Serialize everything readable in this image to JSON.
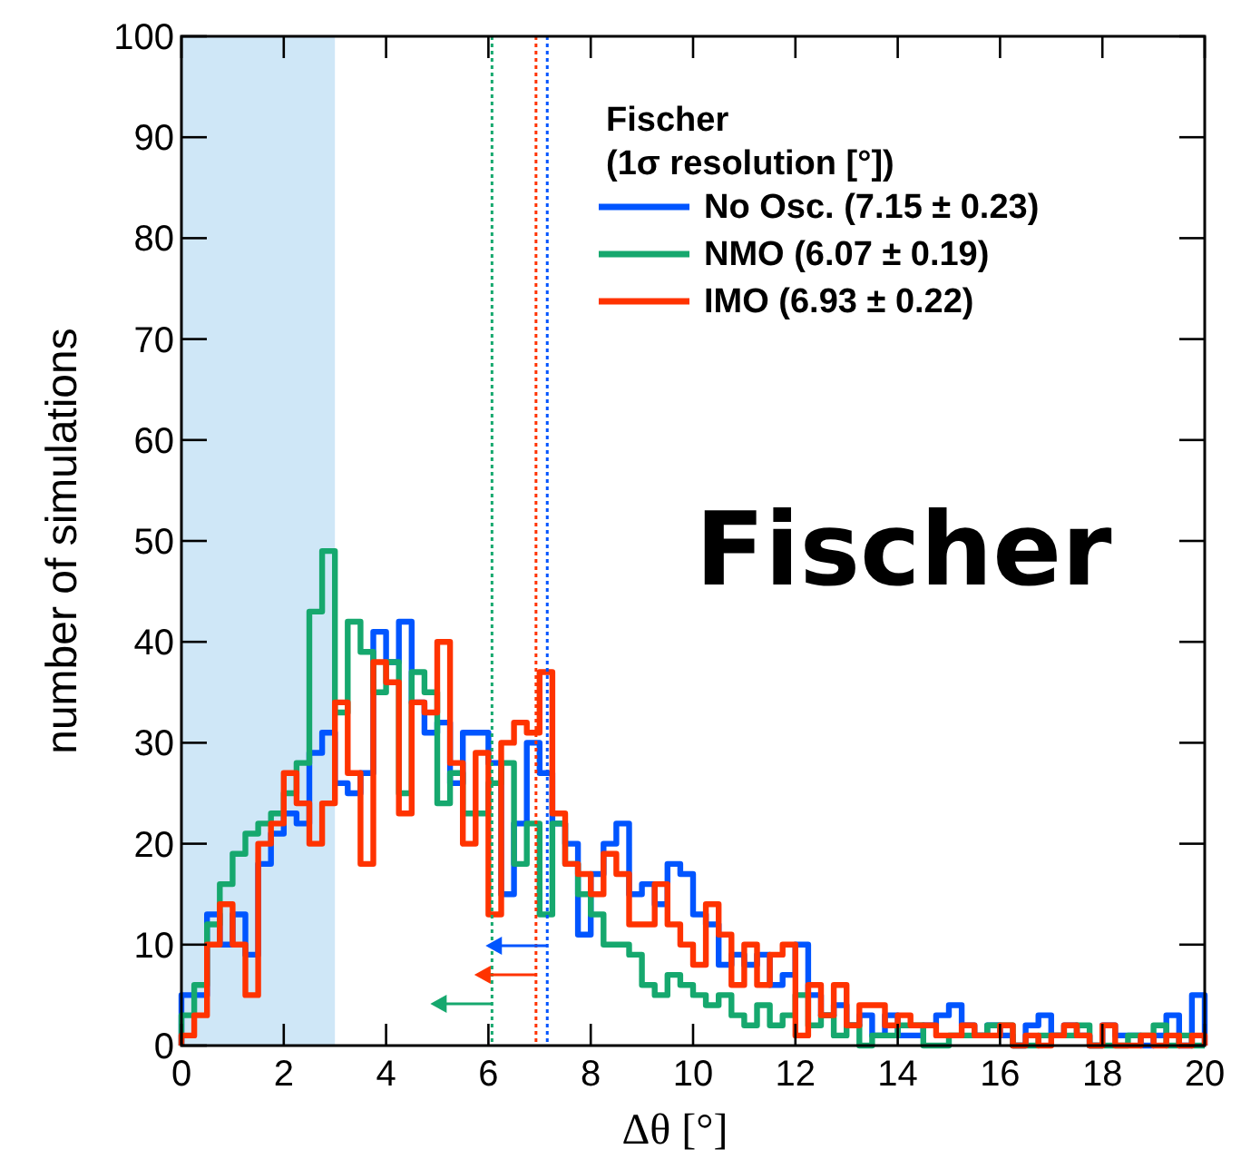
{
  "chart_data": {
    "type": "histogram",
    "xlabel": "Δθ [°]",
    "ylabel": "number of simulations",
    "legend_title": "Fischer\n(1σ resolution [°])",
    "legend": "top right",
    "annotations": [
      "Fischer"
    ],
    "bins": [
      0,
      0.25,
      0.5,
      0.75,
      1,
      1.25,
      1.5,
      1.75,
      2,
      2.25,
      2.5,
      2.75,
      3,
      3.25,
      3.5,
      3.75,
      4,
      4.25,
      4.5,
      4.75,
      5,
      5.25,
      5.5,
      5.75,
      6,
      6.25,
      6.5,
      6.75,
      7,
      7.25,
      7.5,
      7.75,
      8,
      8.25,
      8.5,
      8.75,
      9,
      9.25,
      9.5,
      9.75,
      10,
      10.25,
      10.5,
      10.75,
      11,
      11.25,
      11.5,
      11.75,
      12,
      12.25,
      12.5,
      12.75,
      13,
      13.25,
      13.5,
      13.75,
      14,
      14.25,
      14.5,
      14.75,
      15,
      15.25,
      15.5,
      15.75,
      16,
      16.25,
      16.5,
      16.75,
      17,
      17.25,
      17.5,
      17.75,
      18,
      18.25,
      18.5,
      18.75,
      19,
      19.25,
      19.5,
      19.75,
      20
    ],
    "series": [
      {
        "name": "No Osc. (7.15 ± 0.23)",
        "color": "#0055ff",
        "values": [
          5,
          5,
          13,
          10,
          13,
          9,
          18,
          21,
          23,
          22,
          29,
          31,
          26,
          25,
          27,
          41,
          38,
          42,
          34,
          31,
          32,
          26,
          31,
          31,
          28,
          15,
          22,
          30,
          27,
          22,
          20,
          11,
          17,
          20,
          22,
          15,
          16,
          14,
          18,
          17,
          13,
          12,
          8,
          9,
          8,
          9,
          6,
          7,
          10,
          5,
          3,
          4,
          2,
          3,
          1,
          3,
          1,
          1,
          2,
          3,
          4,
          2,
          1,
          2,
          1,
          0,
          2,
          3,
          1,
          2,
          1,
          0,
          2,
          1,
          1,
          0,
          1,
          3,
          0,
          5
        ]
      },
      {
        "name": "NMO (6.07 ± 0.19)",
        "color": "#16a86e",
        "values": [
          3,
          6,
          12,
          16,
          19,
          21,
          22,
          23,
          25,
          28,
          43,
          49,
          33,
          42,
          39,
          35,
          38,
          25,
          37,
          35,
          24,
          27,
          23,
          23,
          26,
          28,
          18,
          22,
          13,
          22,
          18,
          15,
          13,
          10,
          10,
          9,
          6,
          5,
          7,
          6,
          5,
          4,
          5,
          3,
          2,
          4,
          2,
          3,
          5,
          2,
          3,
          1,
          2,
          0,
          1,
          1,
          2,
          2,
          0,
          0,
          1,
          1,
          1,
          2,
          2,
          0,
          0,
          1,
          1,
          1,
          2,
          0,
          0,
          0,
          1,
          1,
          2,
          0,
          1,
          0
        ]
      },
      {
        "name": "IMO (6.93 ± 0.22)",
        "color": "#ff3300",
        "values": [
          1,
          3,
          10,
          14,
          10,
          5,
          20,
          22,
          27,
          24,
          20,
          24,
          34,
          27,
          18,
          38,
          36,
          23,
          34,
          33,
          40,
          28,
          20,
          29,
          13,
          30,
          32,
          31,
          37,
          23,
          18,
          17,
          15,
          19,
          17,
          12,
          12,
          16,
          12,
          10,
          8,
          14,
          11,
          6,
          10,
          6,
          9,
          10,
          1,
          6,
          3,
          6,
          2,
          4,
          4,
          2,
          3,
          2,
          2,
          1,
          1,
          2,
          1,
          1,
          2,
          0,
          1,
          0,
          1,
          2,
          1,
          0,
          2,
          0,
          0,
          1,
          0,
          1,
          0,
          1
        ]
      }
    ],
    "ref_lines": [
      {
        "axis": "x",
        "value": 7.15,
        "color": "#0055ff",
        "line_style": "dotted"
      },
      {
        "axis": "x",
        "value": 6.93,
        "color": "#ff3300",
        "line_style": "dotted"
      },
      {
        "axis": "x",
        "value": 6.07,
        "color": "#16a86e",
        "line_style": "dotted"
      }
    ],
    "bands": [
      {
        "axis": "x",
        "from": 0,
        "to": 3,
        "color": "#cfe7f7"
      }
    ],
    "xlim": [
      0,
      20
    ],
    "xticks": [
      0,
      2,
      4,
      6,
      8,
      10,
      12,
      14,
      16,
      18,
      20
    ],
    "ylim": [
      0,
      100
    ],
    "yticks": [
      0,
      10,
      20,
      30,
      40,
      50,
      60,
      70,
      80,
      90,
      100
    ],
    "grid": false,
    "line_style": "solid"
  }
}
